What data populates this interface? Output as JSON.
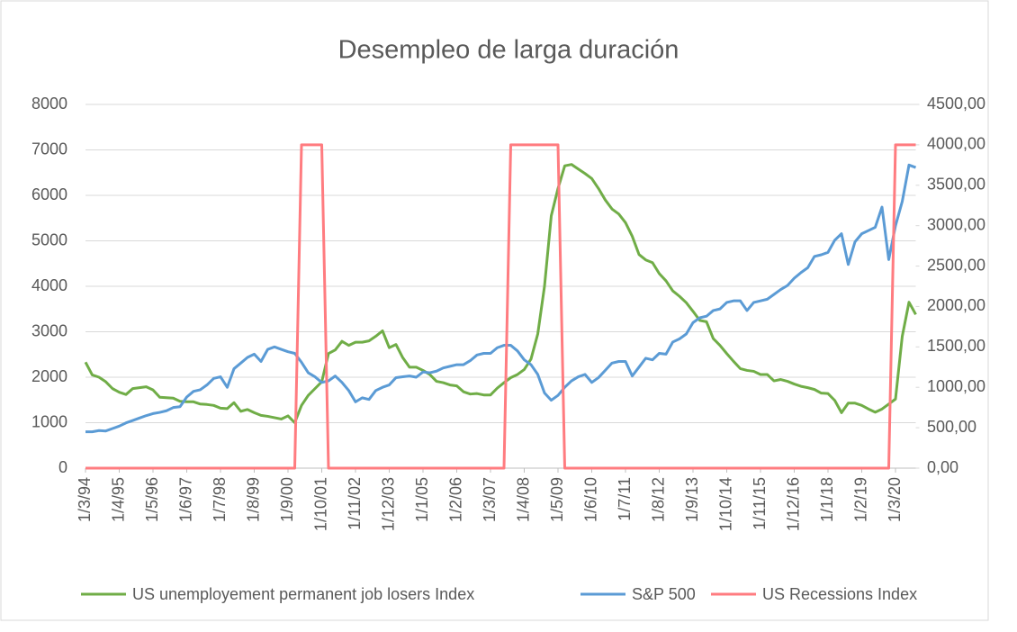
{
  "chart_data": {
    "type": "line",
    "title": "Desempleo de larga duración",
    "categories": [
      "1/3/94",
      null,
      null,
      null,
      null,
      "1/4/95",
      null,
      null,
      null,
      null,
      "1/5/96",
      null,
      null,
      null,
      null,
      "1/6/97",
      null,
      null,
      null,
      null,
      "1/7/98",
      null,
      null,
      null,
      null,
      "1/8/99",
      null,
      null,
      null,
      null,
      "1/9/00",
      null,
      null,
      null,
      null,
      "1/10/01",
      null,
      null,
      null,
      null,
      "1/11/02",
      null,
      null,
      null,
      null,
      "1/12/03",
      null,
      null,
      null,
      null,
      "1/1/05",
      null,
      null,
      null,
      null,
      "1/2/06",
      null,
      null,
      null,
      null,
      "1/3/07",
      null,
      null,
      null,
      null,
      "1/4/08",
      null,
      null,
      null,
      null,
      "1/5/09",
      null,
      null,
      null,
      null,
      "1/6/10",
      null,
      null,
      null,
      null,
      "1/7/11",
      null,
      null,
      null,
      null,
      "1/8/12",
      null,
      null,
      null,
      null,
      "1/9/13",
      null,
      null,
      null,
      null,
      "1/10/14",
      null,
      null,
      null,
      null,
      "1/11/15",
      null,
      null,
      null,
      null,
      "1/12/16",
      null,
      null,
      null,
      null,
      "1/1/18",
      null,
      null,
      null,
      null,
      "1/2/19",
      null,
      null,
      null,
      null,
      "1/3/20",
      null,
      null,
      null
    ],
    "series": [
      {
        "name": "US unemployement permanent job losers Index",
        "color": "#70ad47",
        "axis": "y",
        "values": [
          2330,
          2050,
          2000,
          1900,
          1750,
          1670,
          1620,
          1750,
          1770,
          1790,
          1720,
          1560,
          1550,
          1540,
          1470,
          1460,
          1460,
          1410,
          1400,
          1380,
          1320,
          1310,
          1440,
          1250,
          1290,
          1220,
          1160,
          1140,
          1110,
          1080,
          1150,
          1000,
          1380,
          1600,
          1750,
          1900,
          2520,
          2600,
          2790,
          2700,
          2770,
          2770,
          2800,
          2900,
          3020,
          2650,
          2720,
          2430,
          2220,
          2220,
          2150,
          2060,
          1910,
          1880,
          1830,
          1810,
          1680,
          1630,
          1640,
          1610,
          1610,
          1760,
          1880,
          1990,
          2060,
          2170,
          2400,
          2950,
          4000,
          5550,
          6150,
          6650,
          6680,
          6580,
          6480,
          6370,
          6150,
          5900,
          5700,
          5590,
          5400,
          5100,
          4700,
          4580,
          4520,
          4280,
          4120,
          3900,
          3780,
          3640,
          3450,
          3250,
          3220,
          2850,
          2700,
          2520,
          2350,
          2190,
          2150,
          2130,
          2060,
          2060,
          1920,
          1950,
          1910,
          1850,
          1800,
          1770,
          1730,
          1650,
          1640,
          1490,
          1220,
          1430,
          1430,
          1380,
          1300,
          1230,
          1300,
          1410,
          1520,
          2900,
          3650,
          3380
        ]
      },
      {
        "name": "S&P 500",
        "color": "#5b9bd5",
        "axis": "y2",
        "values": [
          450,
          450,
          465,
          460,
          490,
          520,
          560,
          590,
          620,
          650,
          675,
          690,
          710,
          750,
          760,
          880,
          950,
          970,
          1030,
          1110,
          1130,
          1000,
          1230,
          1300,
          1370,
          1410,
          1320,
          1470,
          1500,
          1470,
          1440,
          1420,
          1310,
          1180,
          1130,
          1060,
          1080,
          1140,
          1060,
          960,
          820,
          870,
          850,
          960,
          1000,
          1030,
          1120,
          1130,
          1140,
          1125,
          1190,
          1180,
          1200,
          1240,
          1260,
          1280,
          1280,
          1330,
          1400,
          1420,
          1420,
          1490,
          1520,
          1520,
          1450,
          1340,
          1280,
          1160,
          930,
          840,
          900,
          1000,
          1080,
          1130,
          1160,
          1060,
          1120,
          1210,
          1300,
          1320,
          1320,
          1140,
          1250,
          1360,
          1340,
          1420,
          1410,
          1560,
          1600,
          1660,
          1800,
          1860,
          1880,
          1950,
          1970,
          2050,
          2070,
          2070,
          1950,
          2050,
          2070,
          2090,
          2150,
          2210,
          2260,
          2350,
          2420,
          2480,
          2620,
          2640,
          2670,
          2820,
          2900,
          2520,
          2800,
          2900,
          2940,
          2980,
          3230,
          2580,
          3000,
          3300,
          3750,
          3720
        ]
      },
      {
        "name": "US Recessions Index",
        "color": "#ff7c80",
        "axis": "y2",
        "values": [
          0,
          0,
          0,
          0,
          0,
          0,
          0,
          0,
          0,
          0,
          0,
          0,
          0,
          0,
          0,
          0,
          0,
          0,
          0,
          0,
          0,
          0,
          0,
          0,
          0,
          0,
          0,
          0,
          0,
          0,
          0,
          0,
          4000,
          4000,
          4000,
          4000,
          0,
          0,
          0,
          0,
          0,
          0,
          0,
          0,
          0,
          0,
          0,
          0,
          0,
          0,
          0,
          0,
          0,
          0,
          0,
          0,
          0,
          0,
          0,
          0,
          0,
          0,
          0,
          4000,
          4000,
          4000,
          4000,
          4000,
          4000,
          4000,
          4000,
          0,
          0,
          0,
          0,
          0,
          0,
          0,
          0,
          0,
          0,
          0,
          0,
          0,
          0,
          0,
          0,
          0,
          0,
          0,
          0,
          0,
          0,
          0,
          0,
          0,
          0,
          0,
          0,
          0,
          0,
          0,
          0,
          0,
          0,
          0,
          0,
          0,
          0,
          0,
          0,
          0,
          0,
          0,
          0,
          0,
          0,
          0,
          0,
          0,
          4000,
          4000,
          4000,
          4000
        ]
      }
    ],
    "ylim": [
      0,
      8000
    ],
    "yticks": [
      0,
      1000,
      2000,
      3000,
      4000,
      5000,
      6000,
      7000,
      8000
    ],
    "y2lim": [
      0,
      4500
    ],
    "y2ticks": [
      {
        "value": 0,
        "label": "0,00"
      },
      {
        "value": 500,
        "label": "500,00"
      },
      {
        "value": 1000,
        "label": "1000,00"
      },
      {
        "value": 1500,
        "label": "1500,00"
      },
      {
        "value": 2000,
        "label": "2000,00"
      },
      {
        "value": 2500,
        "label": "2500,00"
      },
      {
        "value": 3000,
        "label": "3000,00"
      },
      {
        "value": 3500,
        "label": "3500,00"
      },
      {
        "value": 4000,
        "label": "4000,00"
      },
      {
        "value": 4500,
        "label": "4500,00"
      }
    ],
    "grid": true,
    "legend": "bottom"
  }
}
